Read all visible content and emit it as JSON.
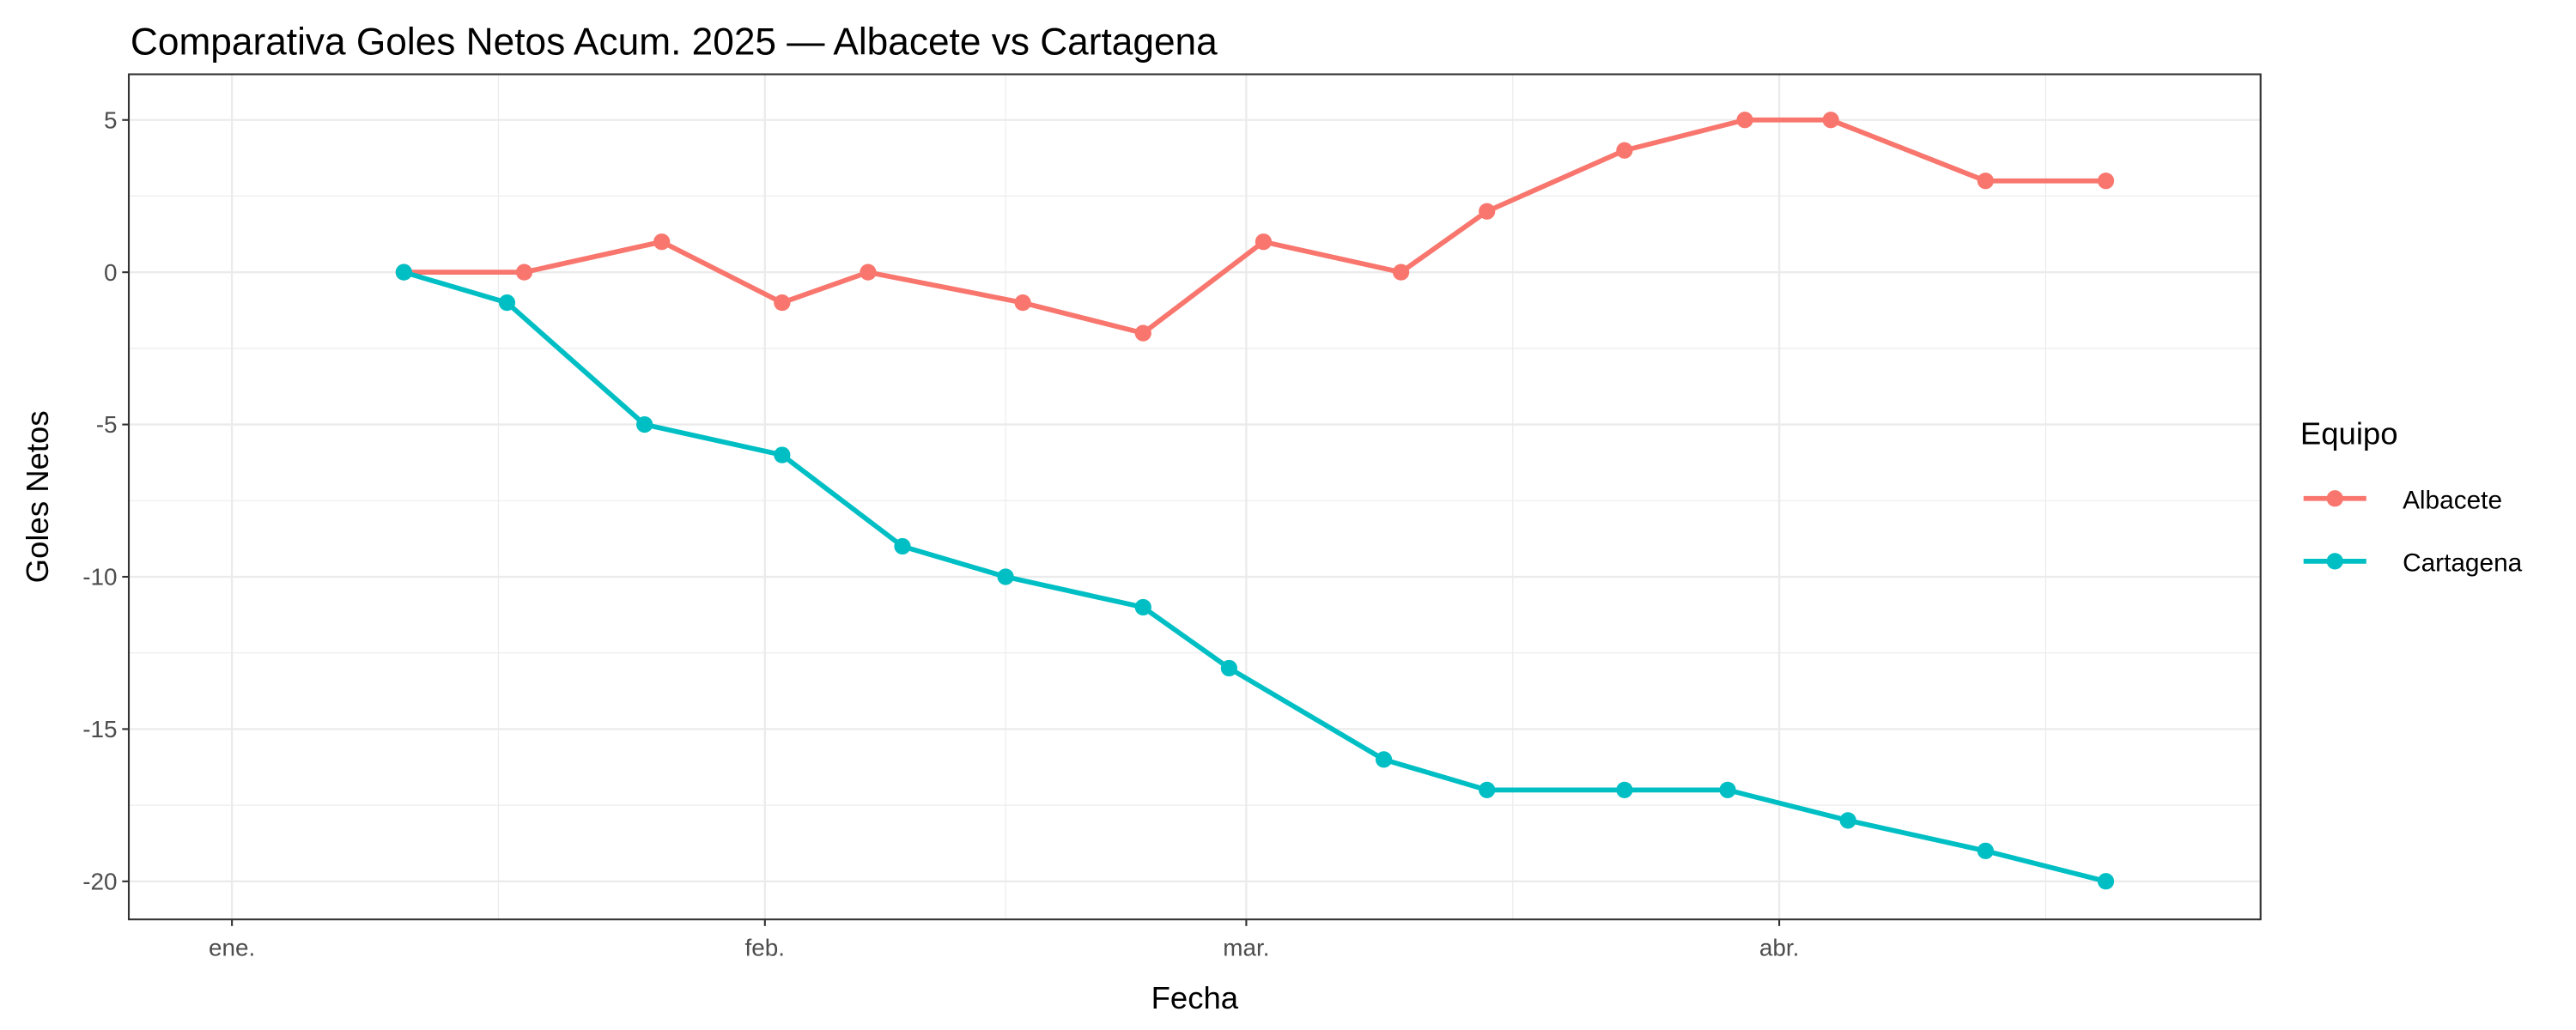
{
  "chart_data": {
    "type": "line",
    "title": "Comparativa Goles Netos Acum. 2025 — Albacete vs Cartagena",
    "xlabel": "Fecha",
    "ylabel": "Goles Netos",
    "xlim": [
      "2024-12-26",
      "2025-04-29"
    ],
    "ylim": [
      -21.25,
      6.5
    ],
    "x_ticks": [
      {
        "date": "2025-01-01",
        "label": "ene."
      },
      {
        "date": "2025-02-01",
        "label": "feb."
      },
      {
        "date": "2025-03-01",
        "label": "mar."
      },
      {
        "date": "2025-04-01",
        "label": "abr."
      }
    ],
    "y_ticks": [
      5,
      0,
      -5,
      -10,
      -15,
      -20
    ],
    "y_tick_labels": [
      "5",
      "0",
      "-5",
      "-10",
      "-15",
      "-20"
    ],
    "grid": true,
    "legend": {
      "title": "Equipo",
      "placement": "right"
    },
    "series": [
      {
        "name": "Albacete",
        "color": "#F8766D",
        "x": [
          "2025-01-11",
          "2025-01-18",
          "2025-01-26",
          "2025-02-02",
          "2025-02-07",
          "2025-02-16",
          "2025-02-23",
          "2025-03-02",
          "2025-03-10",
          "2025-03-15",
          "2025-03-23",
          "2025-03-30",
          "2025-04-04",
          "2025-04-13",
          "2025-04-20"
        ],
        "y": [
          0,
          0,
          1,
          -1,
          0,
          -1,
          -2,
          1,
          0,
          2,
          4,
          5,
          5,
          3,
          3
        ]
      },
      {
        "name": "Cartagena",
        "color": "#00BFC4",
        "x": [
          "2025-01-11",
          "2025-01-17",
          "2025-01-25",
          "2025-02-02",
          "2025-02-09",
          "2025-02-15",
          "2025-02-23",
          "2025-02-28",
          "2025-03-09",
          "2025-03-15",
          "2025-03-23",
          "2025-03-29",
          "2025-04-05",
          "2025-04-13",
          "2025-04-20"
        ],
        "y": [
          0,
          -1,
          -5,
          -6,
          -9,
          -10,
          -11,
          -13,
          -16,
          -17,
          -17,
          -17,
          -18,
          -19,
          -20
        ]
      }
    ]
  }
}
